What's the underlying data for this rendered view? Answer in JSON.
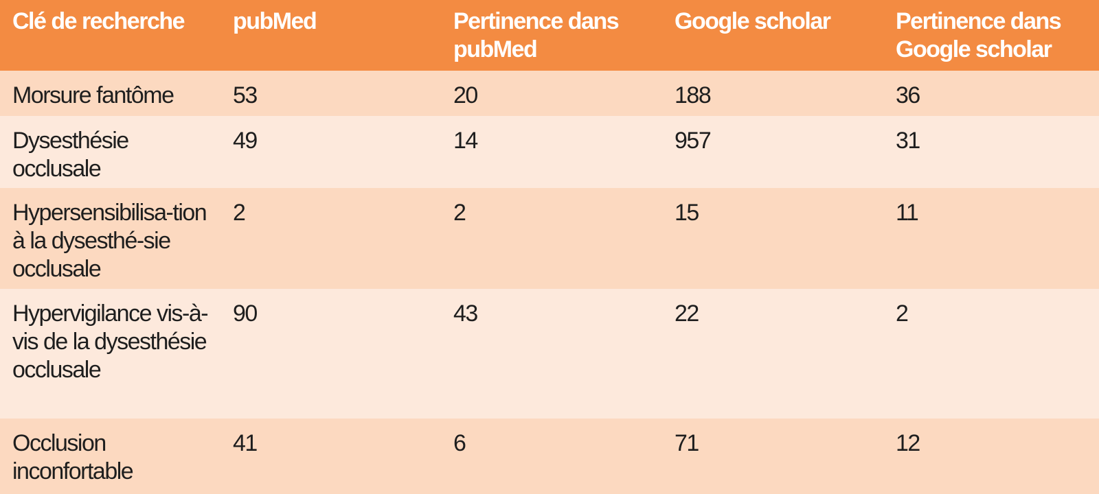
{
  "table": {
    "headers": [
      "Clé de recherche",
      "pubMed",
      "Pertinence dans pubMed",
      "Google scholar",
      "Pertinence dans Google scholar"
    ],
    "rows": [
      [
        "Morsure fantôme",
        "53",
        "20",
        "188",
        "36"
      ],
      [
        "Dysesthésie occlusale",
        "49",
        "14",
        "957",
        "31"
      ],
      [
        "Hypersensibilisa-tion à la dysesthé-sie occlusale",
        "2",
        "2",
        "15",
        "11"
      ],
      [
        "Hypervigilance vis-à-vis de la dysesthésie occlusale",
        "90",
        "43",
        "22",
        "2"
      ],
      [
        "Occlusion inconfortable",
        "41",
        "6",
        "71",
        "12"
      ]
    ]
  },
  "colors": {
    "header_bg": "#f38b42",
    "header_text": "#ffffff",
    "row_odd_bg": "#fcd9c0",
    "row_even_bg": "#fde9dc",
    "body_text": "#1e1e1e"
  }
}
